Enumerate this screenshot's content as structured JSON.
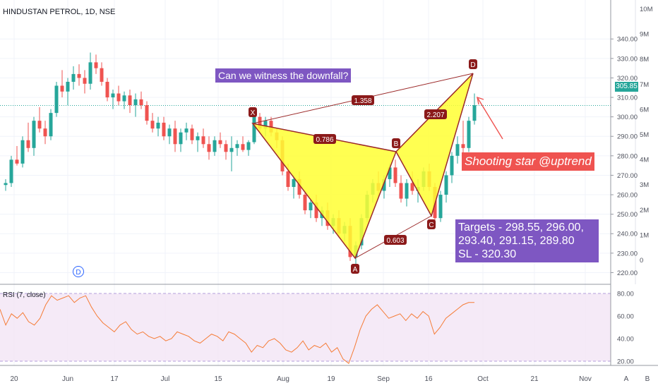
{
  "header": {
    "symbol_line": "HINDUSTAN PETROL, 1D, NSE"
  },
  "annotations": {
    "question": "Can we witness the downfall?",
    "shooting_star": "Shooting star @uptrend",
    "targets_lines": [
      "Targets - 298.55, 296.00,",
      "293.40, 291.15, 289.80",
      "SL - 320.30"
    ],
    "last_price": "305.85",
    "dividend_marker": "D"
  },
  "pattern": {
    "points": [
      {
        "label": "X",
        "date": "Jul 22",
        "price": 289
      },
      {
        "label": "A",
        "date": "Aug 23",
        "price": 224
      },
      {
        "label": "B",
        "date": "Sep 6",
        "price": 275
      },
      {
        "label": "C",
        "date": "Sep 17",
        "price": 245
      },
      {
        "label": "D",
        "date": "Sep 27",
        "price": 312
      }
    ],
    "ratios": [
      {
        "text": "0.786",
        "between": "XA-B"
      },
      {
        "text": "0.603",
        "between": "A-C"
      },
      {
        "text": "2.207",
        "between": "B-D"
      },
      {
        "text": "1.358",
        "between": "X-D"
      }
    ]
  },
  "colors": {
    "up": "#26a69a",
    "down": "#ef5350",
    "pattern_fill": "#ffff33",
    "pattern_line": "#9c2a2a",
    "label_fill": "#8b1a1a",
    "annotation_purple": "#7e57c2",
    "rsi_line": "#f57c37",
    "rsi_band": "#f3e5f5"
  },
  "chart_data": [
    {
      "type": "candlestick",
      "title": "HINDUSTAN PETROL, 1D, NSE",
      "ylim": [
        214,
        344
      ],
      "price_ticks": [
        "340.00",
        "330.00",
        "320.00",
        "310.00",
        "300.00",
        "290.00",
        "280.00",
        "270.00",
        "260.00",
        "250.00",
        "240.00",
        "230.00",
        "220.00"
      ],
      "volume_ticks": [
        "10M",
        "9M",
        "8M",
        "7M",
        "6M",
        "5M",
        "4M",
        "3M",
        "2M",
        "1M",
        "0"
      ],
      "x_tick_labels": [
        "20",
        "Jun",
        "17",
        "Jul",
        "15",
        "Aug",
        "19",
        "Sep",
        "16",
        "Oct",
        "21",
        "Nov"
      ],
      "last_price": 305.85,
      "ohlc": [
        [
          265,
          268,
          262,
          266
        ],
        [
          266,
          280,
          264,
          278
        ],
        [
          278,
          285,
          275,
          276
        ],
        [
          276,
          290,
          274,
          288
        ],
        [
          288,
          297,
          282,
          284
        ],
        [
          284,
          300,
          280,
          298
        ],
        [
          298,
          305,
          292,
          294
        ],
        [
          294,
          298,
          286,
          290
        ],
        [
          290,
          304,
          288,
          302
        ],
        [
          302,
          318,
          300,
          316
        ],
        [
          316,
          324,
          310,
          313
        ],
        [
          313,
          320,
          306,
          318
        ],
        [
          318,
          326,
          314,
          322
        ],
        [
          322,
          327,
          316,
          320
        ],
        [
          320,
          324,
          312,
          317
        ],
        [
          317,
          333,
          314,
          328
        ],
        [
          328,
          332,
          322,
          325
        ],
        [
          325,
          328,
          316,
          318
        ],
        [
          318,
          320,
          308,
          310
        ],
        [
          310,
          314,
          304,
          312
        ],
        [
          312,
          316,
          306,
          308
        ],
        [
          308,
          313,
          304,
          311
        ],
        [
          311,
          314,
          302,
          306
        ],
        [
          306,
          312,
          300,
          309
        ],
        [
          309,
          313,
          304,
          306
        ],
        [
          306,
          308,
          296,
          298
        ],
        [
          298,
          302,
          292,
          294
        ],
        [
          294,
          300,
          290,
          297
        ],
        [
          297,
          300,
          288,
          290
        ],
        [
          290,
          296,
          286,
          294
        ],
        [
          294,
          298,
          282,
          286
        ],
        [
          286,
          294,
          282,
          292
        ],
        [
          292,
          297,
          288,
          294
        ],
        [
          294,
          296,
          286,
          288
        ],
        [
          288,
          292,
          282,
          290
        ],
        [
          290,
          294,
          284,
          286
        ],
        [
          286,
          290,
          278,
          282
        ],
        [
          282,
          290,
          280,
          288
        ],
        [
          288,
          292,
          284,
          286
        ],
        [
          286,
          288,
          278,
          282
        ],
        [
          282,
          290,
          272,
          284
        ],
        [
          284,
          288,
          280,
          286
        ],
        [
          286,
          290,
          282,
          283
        ],
        [
          283,
          288,
          280,
          287
        ],
        [
          287,
          302,
          286,
          300
        ],
        [
          300,
          302,
          292,
          294
        ],
        [
          294,
          300,
          290,
          298
        ],
        [
          298,
          300,
          290,
          292
        ],
        [
          292,
          294,
          284,
          288
        ],
        [
          288,
          290,
          270,
          272
        ],
        [
          272,
          276,
          262,
          264
        ],
        [
          264,
          270,
          258,
          268
        ],
        [
          268,
          272,
          258,
          260
        ],
        [
          260,
          262,
          250,
          252
        ],
        [
          252,
          258,
          248,
          256
        ],
        [
          256,
          260,
          246,
          248
        ],
        [
          248,
          254,
          244,
          252
        ],
        [
          252,
          256,
          242,
          244
        ],
        [
          244,
          250,
          240,
          248
        ],
        [
          248,
          252,
          238,
          240
        ],
        [
          240,
          246,
          236,
          244
        ],
        [
          244,
          248,
          226,
          228
        ],
        [
          228,
          236,
          224,
          234
        ],
        [
          234,
          250,
          232,
          248
        ],
        [
          248,
          262,
          246,
          260
        ],
        [
          260,
          268,
          256,
          266
        ],
        [
          266,
          272,
          258,
          262
        ],
        [
          262,
          270,
          258,
          268
        ],
        [
          268,
          276,
          264,
          274
        ],
        [
          274,
          278,
          264,
          266
        ],
        [
          266,
          270,
          256,
          258
        ],
        [
          258,
          268,
          254,
          266
        ],
        [
          266,
          272,
          260,
          262
        ],
        [
          262,
          268,
          256,
          264
        ],
        [
          264,
          274,
          262,
          272
        ],
        [
          272,
          276,
          262,
          264
        ],
        [
          264,
          266,
          246,
          248
        ],
        [
          248,
          262,
          246,
          260
        ],
        [
          260,
          272,
          256,
          270
        ],
        [
          270,
          282,
          266,
          280
        ],
        [
          280,
          290,
          276,
          286
        ],
        [
          286,
          298,
          280,
          284
        ],
        [
          284,
          300,
          282,
          298
        ],
        [
          298,
          312,
          296,
          306
        ]
      ]
    },
    {
      "type": "line",
      "title": "RSI (7, close)",
      "ylim": [
        15,
        85
      ],
      "y_ticks": [
        "80.00",
        "60.00",
        "40.00",
        "20.00"
      ],
      "band": [
        20,
        80
      ],
      "values": [
        66,
        52,
        62,
        58,
        63,
        55,
        52,
        58,
        70,
        78,
        74,
        76,
        78,
        72,
        76,
        78,
        68,
        60,
        54,
        50,
        46,
        52,
        55,
        48,
        44,
        46,
        42,
        40,
        42,
        38,
        40,
        46,
        44,
        42,
        38,
        36,
        40,
        44,
        42,
        38,
        46,
        44,
        40,
        36,
        28,
        34,
        32,
        38,
        40,
        36,
        30,
        28,
        32,
        38,
        30,
        34,
        32,
        36,
        28,
        32,
        22,
        18,
        32,
        48,
        60,
        66,
        70,
        64,
        58,
        60,
        62,
        56,
        62,
        58,
        64,
        60,
        44,
        50,
        58,
        62,
        66,
        70,
        72,
        72
      ]
    }
  ]
}
